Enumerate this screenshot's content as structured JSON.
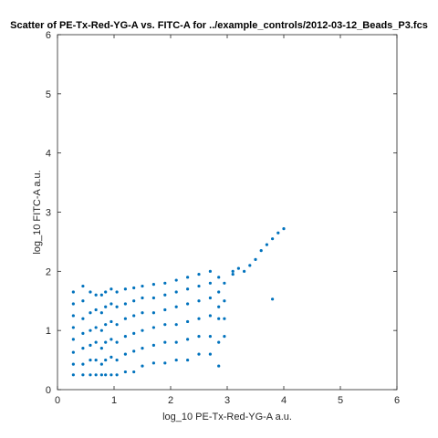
{
  "chart_data": {
    "type": "scatter",
    "title": "Scatter of PE-Tx-Red-YG-A vs. FITC-A for ../example_controls/2012-03-12_Beads_P3.fcs",
    "xlabel": "log_10 PE-Tx-Red-YG-A a.u.",
    "ylabel": "log_10 FITC-A a.u.",
    "xlim": [
      0,
      6
    ],
    "ylim": [
      0,
      6
    ],
    "xticks": [
      0,
      1,
      2,
      3,
      4,
      5,
      6
    ],
    "yticks": [
      0,
      1,
      2,
      3,
      4,
      5,
      6
    ],
    "grid": false,
    "box": true,
    "marker_color": "#0072BD",
    "series": [
      {
        "points": [
          [
            0.28,
            1.65
          ],
          [
            0.28,
            1.45
          ],
          [
            0.28,
            1.25
          ],
          [
            0.28,
            1.05
          ],
          [
            0.28,
            0.85
          ],
          [
            0.28,
            0.63
          ],
          [
            0.28,
            0.43
          ],
          [
            0.28,
            0.25
          ],
          [
            0.45,
            1.75
          ],
          [
            0.45,
            1.5
          ],
          [
            0.45,
            1.2
          ],
          [
            0.45,
            0.95
          ],
          [
            0.45,
            0.7
          ],
          [
            0.45,
            0.43
          ],
          [
            0.45,
            0.25
          ],
          [
            0.58,
            1.65
          ],
          [
            0.58,
            1.3
          ],
          [
            0.58,
            1.0
          ],
          [
            0.58,
            0.75
          ],
          [
            0.58,
            0.5
          ],
          [
            0.58,
            0.25
          ],
          [
            0.68,
            1.6
          ],
          [
            0.68,
            1.35
          ],
          [
            0.68,
            1.05
          ],
          [
            0.68,
            0.8
          ],
          [
            0.68,
            0.5
          ],
          [
            0.68,
            0.25
          ],
          [
            0.78,
            1.6
          ],
          [
            0.78,
            1.3
          ],
          [
            0.78,
            1.0
          ],
          [
            0.78,
            0.7
          ],
          [
            0.78,
            0.43
          ],
          [
            0.78,
            0.25
          ],
          [
            0.85,
            1.65
          ],
          [
            0.85,
            1.4
          ],
          [
            0.85,
            1.1
          ],
          [
            0.85,
            0.8
          ],
          [
            0.85,
            0.5
          ],
          [
            0.85,
            0.25
          ],
          [
            0.95,
            1.7
          ],
          [
            0.95,
            1.45
          ],
          [
            0.95,
            1.15
          ],
          [
            0.95,
            0.85
          ],
          [
            0.95,
            0.55
          ],
          [
            0.95,
            0.25
          ],
          [
            1.05,
            1.65
          ],
          [
            1.05,
            1.4
          ],
          [
            1.05,
            1.1
          ],
          [
            1.05,
            0.8
          ],
          [
            1.05,
            0.5
          ],
          [
            1.05,
            0.25
          ],
          [
            1.2,
            1.7
          ],
          [
            1.2,
            1.45
          ],
          [
            1.2,
            1.2
          ],
          [
            1.2,
            0.9
          ],
          [
            1.2,
            0.6
          ],
          [
            1.2,
            0.3
          ],
          [
            1.35,
            1.72
          ],
          [
            1.35,
            1.5
          ],
          [
            1.35,
            1.25
          ],
          [
            1.35,
            0.95
          ],
          [
            1.35,
            0.65
          ],
          [
            1.35,
            0.3
          ],
          [
            1.5,
            1.75
          ],
          [
            1.5,
            1.55
          ],
          [
            1.5,
            1.3
          ],
          [
            1.5,
            1.0
          ],
          [
            1.5,
            0.7
          ],
          [
            1.5,
            0.4
          ],
          [
            1.7,
            1.78
          ],
          [
            1.7,
            1.55
          ],
          [
            1.7,
            1.3
          ],
          [
            1.7,
            1.05
          ],
          [
            1.7,
            0.75
          ],
          [
            1.7,
            0.45
          ],
          [
            1.9,
            1.8
          ],
          [
            1.9,
            1.6
          ],
          [
            1.9,
            1.35
          ],
          [
            1.9,
            1.1
          ],
          [
            1.9,
            0.8
          ],
          [
            1.9,
            0.45
          ],
          [
            2.1,
            1.85
          ],
          [
            2.1,
            1.65
          ],
          [
            2.1,
            1.4
          ],
          [
            2.1,
            1.1
          ],
          [
            2.1,
            0.8
          ],
          [
            2.1,
            0.5
          ],
          [
            2.3,
            1.9
          ],
          [
            2.3,
            1.7
          ],
          [
            2.3,
            1.45
          ],
          [
            2.3,
            1.15
          ],
          [
            2.3,
            0.85
          ],
          [
            2.3,
            0.5
          ],
          [
            2.5,
            1.95
          ],
          [
            2.5,
            1.75
          ],
          [
            2.5,
            1.5
          ],
          [
            2.5,
            1.2
          ],
          [
            2.5,
            0.9
          ],
          [
            2.5,
            0.6
          ],
          [
            2.7,
            2.0
          ],
          [
            2.7,
            1.8
          ],
          [
            2.7,
            1.55
          ],
          [
            2.7,
            1.25
          ],
          [
            2.7,
            0.9
          ],
          [
            2.7,
            0.6
          ],
          [
            2.85,
            1.9
          ],
          [
            2.85,
            1.65
          ],
          [
            2.85,
            1.4
          ],
          [
            2.85,
            1.2
          ],
          [
            2.85,
            0.8
          ],
          [
            2.85,
            0.4
          ],
          [
            2.95,
            1.8
          ],
          [
            2.95,
            1.5
          ],
          [
            2.95,
            1.2
          ],
          [
            2.95,
            0.9
          ],
          [
            3.1,
            1.95
          ],
          [
            3.1,
            2.0
          ],
          [
            3.2,
            2.05
          ],
          [
            3.3,
            2.0
          ],
          [
            3.4,
            2.1
          ],
          [
            3.5,
            2.2
          ],
          [
            3.6,
            2.35
          ],
          [
            3.7,
            2.45
          ],
          [
            3.8,
            2.55
          ],
          [
            3.9,
            2.65
          ],
          [
            4.0,
            2.72
          ],
          [
            3.8,
            1.53
          ]
        ]
      }
    ]
  }
}
